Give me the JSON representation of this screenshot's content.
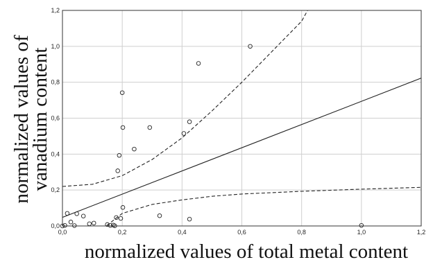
{
  "chart_data": {
    "type": "scatter",
    "xlabel": "normalized values of total metal content",
    "ylabel": "normalized values of vanadium content",
    "xlim": [
      0,
      1.2
    ],
    "ylim": [
      0,
      1.2
    ],
    "x_ticks": [
      0,
      0.2,
      0.4,
      0.6,
      0.8,
      1.0,
      1.2
    ],
    "y_ticks": [
      0,
      0.2,
      0.4,
      0.6,
      0.8,
      1.0,
      1.2
    ],
    "x_tick_labels": [
      "0,0",
      "0,2",
      "0,4",
      "0,6",
      "0,8",
      "1,0",
      "1,2"
    ],
    "y_tick_labels": [
      "0,0",
      "0,2",
      "0,4",
      "0,6",
      "0,8",
      "1,0",
      "1,2"
    ],
    "grid": true,
    "points": [
      {
        "x": 0.628,
        "y": 1.0
      },
      {
        "x": 0.455,
        "y": 0.905
      },
      {
        "x": 0.2,
        "y": 0.742
      },
      {
        "x": 0.425,
        "y": 0.58
      },
      {
        "x": 0.292,
        "y": 0.548
      },
      {
        "x": 0.202,
        "y": 0.548
      },
      {
        "x": 0.406,
        "y": 0.515
      },
      {
        "x": 0.24,
        "y": 0.428
      },
      {
        "x": 0.19,
        "y": 0.393
      },
      {
        "x": 0.185,
        "y": 0.307
      },
      {
        "x": 0.202,
        "y": 0.103
      },
      {
        "x": 0.016,
        "y": 0.07
      },
      {
        "x": 0.048,
        "y": 0.068
      },
      {
        "x": 0.07,
        "y": 0.055
      },
      {
        "x": 0.325,
        "y": 0.057
      },
      {
        "x": 0.425,
        "y": 0.038
      },
      {
        "x": 0.18,
        "y": 0.047
      },
      {
        "x": 0.195,
        "y": 0.042
      },
      {
        "x": 0.028,
        "y": 0.022
      },
      {
        "x": 0.09,
        "y": 0.012
      },
      {
        "x": 0.105,
        "y": 0.016
      },
      {
        "x": 0.15,
        "y": 0.008
      },
      {
        "x": 0.16,
        "y": 0.003
      },
      {
        "x": 0.17,
        "y": 0.005
      },
      {
        "x": 0.175,
        "y": 0.001
      },
      {
        "x": 0.008,
        "y": 0.003
      },
      {
        "x": 0.04,
        "y": 0.002
      },
      {
        "x": 0.0,
        "y": 0.0
      },
      {
        "x": 1.0,
        "y": 0.003
      }
    ],
    "regression_line": [
      [
        0.0,
        0.048
      ],
      [
        1.2,
        0.823
      ]
    ],
    "confidence_upper": [
      [
        0.0,
        0.22
      ],
      [
        0.1,
        0.232
      ],
      [
        0.2,
        0.28
      ],
      [
        0.3,
        0.37
      ],
      [
        0.4,
        0.49
      ],
      [
        0.5,
        0.64
      ],
      [
        0.6,
        0.8
      ],
      [
        0.7,
        0.97
      ],
      [
        0.8,
        1.14
      ],
      [
        0.82,
        1.2
      ]
    ],
    "confidence_lower": [
      [
        0.0,
        -0.12
      ],
      [
        0.1,
        -0.06
      ],
      [
        0.2,
        0.07
      ],
      [
        0.3,
        0.12
      ],
      [
        0.4,
        0.145
      ],
      [
        0.5,
        0.165
      ],
      [
        0.6,
        0.178
      ],
      [
        0.8,
        0.193
      ],
      [
        1.0,
        0.205
      ],
      [
        1.2,
        0.215
      ]
    ]
  }
}
